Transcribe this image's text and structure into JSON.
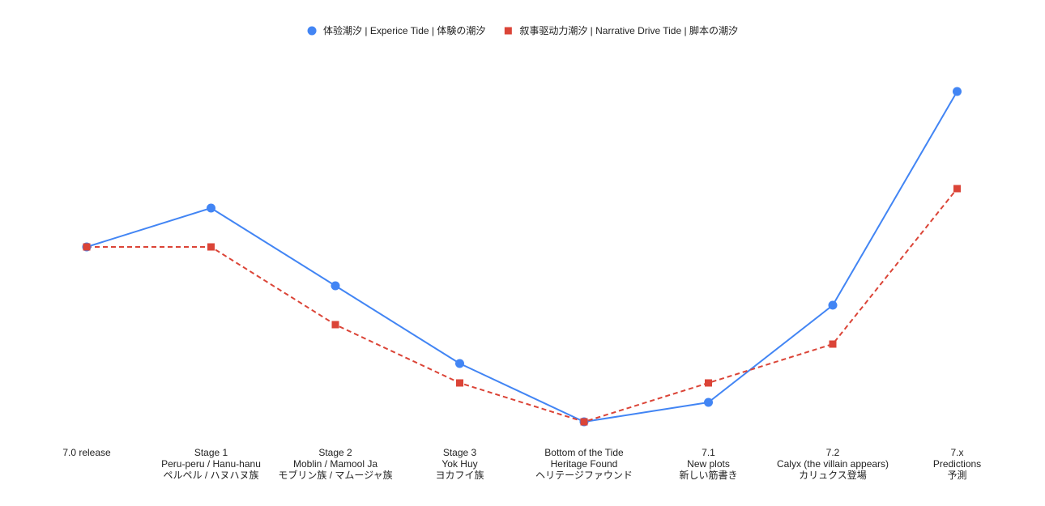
{
  "chart_data": {
    "type": "line",
    "categories": [
      [
        "7.0 release"
      ],
      [
        "Stage 1",
        "Peru-peru / Hanu-hanu",
        "ペルペル / ハヌハヌ族"
      ],
      [
        "Stage 2",
        "Moblin / Mamool Ja",
        "モブリン族 / マムージャ族"
      ],
      [
        "Stage 3",
        "Yok Huy",
        "ヨカフイ族"
      ],
      [
        "Bottom of the Tide",
        "Heritage Found",
        "ヘリテージファウンド"
      ],
      [
        "7.1",
        "New plots",
        "新しい筋書き"
      ],
      [
        "7.2",
        "Calyx (the villain appears)",
        "カリュクス登場"
      ],
      [
        "7.x",
        "Predictions",
        "予測"
      ]
    ],
    "series": [
      {
        "name": "体验潮汐 | Experice Tide | 体験の潮汐",
        "color": "#4285f4",
        "marker": "circle",
        "dash": "solid",
        "values": [
          0,
          2,
          -2,
          -6,
          -9,
          -8,
          -3,
          8
        ]
      },
      {
        "name": "叙事驱动力潮汐 | Narrative Drive Tide | 脚本の潮汐",
        "color": "#db4437",
        "marker": "square",
        "dash": "dashed",
        "values": [
          0,
          0,
          -4,
          -7,
          -9,
          -7,
          -5,
          3
        ]
      }
    ],
    "ylim": [
      -10,
      10
    ],
    "legend_position": "top-center",
    "grid": false,
    "title": "",
    "xlabel": "",
    "ylabel": ""
  }
}
